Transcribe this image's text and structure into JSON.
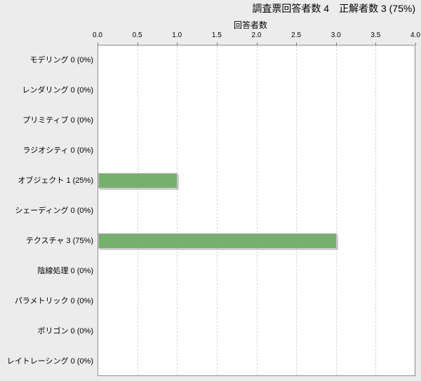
{
  "header": {
    "title": "調査票回答者数 4　正解者数 3 (75%)"
  },
  "chart_data": {
    "type": "bar",
    "orientation": "horizontal",
    "title": "調査票回答者数 4　正解者数 3 (75%)",
    "xlabel": "回答者数",
    "ylabel": "",
    "xlim": [
      0.0,
      4.0
    ],
    "xtick_labels": [
      "0.0",
      "0.5",
      "1.0",
      "1.5",
      "2.0",
      "2.5",
      "3.0",
      "3.5",
      "4.0"
    ],
    "grid": "vertical-dashed",
    "legend": "none",
    "categories": [
      "モデリング",
      "レンダリング",
      "プリミティブ",
      "ラジオシティ",
      "オブジェクト",
      "シェーディング",
      "テクスチャ",
      "陰線処理",
      "パラメトリック",
      "ポリゴン",
      "レイトレーシング"
    ],
    "values": [
      0,
      0,
      0,
      0,
      1,
      0,
      3,
      0,
      0,
      0,
      0
    ],
    "percentages": [
      "0%",
      "0%",
      "0%",
      "0%",
      "25%",
      "0%",
      "75%",
      "0%",
      "0%",
      "0%",
      "0%"
    ],
    "row_labels": [
      "モデリング 0 (0%)",
      "レンダリング 0 (0%)",
      "プリミティブ 0 (0%)",
      "ラジオシティ 0 (0%)",
      "オブジェクト 1 (25%)",
      "シェーディング 0 (0%)",
      "テクスチャ 3 (75%)",
      "陰線処理 0 (0%)",
      "パラメトリック 0 (0%)",
      "ポリゴン 0 (0%)",
      "レイトレーシング 0 (0%)"
    ]
  },
  "colors": {
    "page_background": "#ececec",
    "plot_background": "#ffffff",
    "plot_border": "#8c8c8c",
    "gridline": "#d6d6d6",
    "bar_fill": "#75b06c",
    "bar_outline": "#c3c3c3",
    "text": "#000000"
  }
}
